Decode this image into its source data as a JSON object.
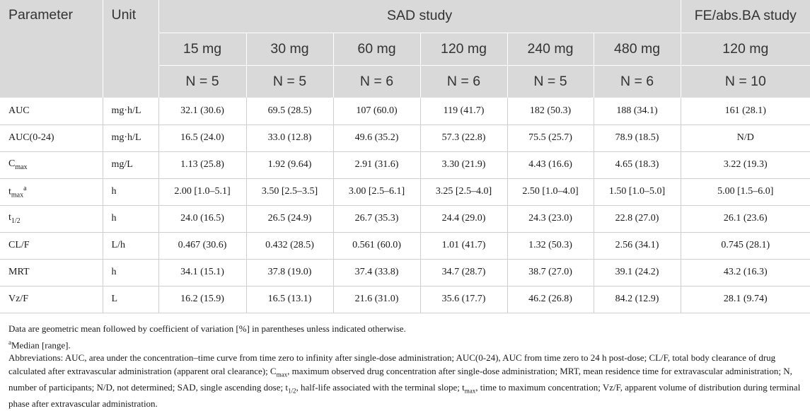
{
  "table": {
    "header": {
      "parameter": "Parameter",
      "unit": "Unit",
      "sad_group": "SAD study",
      "fe_group": "FE/abs.BA study",
      "doses": [
        "15 mg",
        "30 mg",
        "60 mg",
        "120 mg",
        "240 mg",
        "480 mg",
        "120 mg"
      ],
      "n": [
        "N = 5",
        "N = 5",
        "N = 6",
        "N = 6",
        "N = 5",
        "N = 6",
        "N = 10"
      ]
    },
    "rows": [
      {
        "param": "AUC",
        "unit": "mg·h/L",
        "values": [
          "32.1 (30.6)",
          "69.5 (28.5)",
          "107 (60.0)",
          "119 (41.7)",
          "182 (50.3)",
          "188 (34.1)",
          "161 (28.1)"
        ]
      },
      {
        "param": "AUC(0-24)",
        "unit": "mg·h/L",
        "values": [
          "16.5 (24.0)",
          "33.0 (12.8)",
          "49.6 (35.2)",
          "57.3 (22.8)",
          "75.5 (25.7)",
          "78.9 (18.5)",
          "N/D"
        ]
      },
      {
        "param_base": "C",
        "param_sub": "max",
        "unit": "mg/L",
        "values": [
          "1.13 (25.8)",
          "1.92 (9.64)",
          "2.91 (31.6)",
          "3.30 (21.9)",
          "4.43 (16.6)",
          "4.65 (18.3)",
          "3.22 (19.3)"
        ]
      },
      {
        "param_base": "t",
        "param_sub": "max",
        "param_sup": "a",
        "unit": "h",
        "values": [
          "2.00 [1.0–5.1]",
          "3.50 [2.5–3.5]",
          "3.00 [2.5–6.1]",
          "3.25 [2.5–4.0]",
          "2.50 [1.0–4.0]",
          "1.50 [1.0–5.0]",
          "5.00 [1.5–6.0]"
        ]
      },
      {
        "param_base": "t",
        "param_sub": "1/2",
        "unit": "h",
        "values": [
          "24.0 (16.5)",
          "26.5 (24.9)",
          "26.7 (35.3)",
          "24.4 (29.0)",
          "24.3 (23.0)",
          "22.8 (27.0)",
          "26.1 (23.6)"
        ]
      },
      {
        "param": "CL/F",
        "unit": "L/h",
        "values": [
          "0.467 (30.6)",
          "0.432 (28.5)",
          "0.561 (60.0)",
          "1.01 (41.7)",
          "1.32 (50.3)",
          "2.56 (34.1)",
          "0.745 (28.1)"
        ]
      },
      {
        "param": "MRT",
        "unit": "h",
        "values": [
          "34.1 (15.1)",
          "37.8 (19.0)",
          "37.4 (33.8)",
          "34.7 (28.7)",
          "38.7 (27.0)",
          "39.1 (24.2)",
          "43.2 (16.3)"
        ]
      },
      {
        "param": "Vz/F",
        "unit": "L",
        "values": [
          "16.2 (15.9)",
          "16.5 (13.1)",
          "21.6 (31.0)",
          "35.6 (17.7)",
          "46.2 (26.8)",
          "84.2 (12.9)",
          "28.1 (9.74)"
        ]
      }
    ]
  },
  "footnotes": {
    "data_note": "Data are geometric mean followed by coefficient of variation [%] in parentheses unless indicated otherwise.",
    "a_marker": "a",
    "a_text": "Median [range].",
    "abbr_1": "Abbreviations: AUC, area under the concentration–time curve from time zero to infinity after single-dose administration; AUC(0-24), AUC from time zero to 24 h post-dose; CL/F, total body clearance of drug calculated after extravascular administration (apparent oral clearance); C",
    "abbr_1_sub": "max",
    "abbr_2": ", maximum observed drug concentration after single-dose administration; MRT, mean residence time for extravascular administration; N, number of participants; N/D, not determined; SAD, single ascending dose; t",
    "abbr_2_sub": "1/2",
    "abbr_3": ", half-life associated with the terminal slope; t",
    "abbr_3_sub": "max",
    "abbr_4": ", time to maximum concentration; Vz/F, apparent volume of distribution during terminal phase after extravascular administration."
  }
}
